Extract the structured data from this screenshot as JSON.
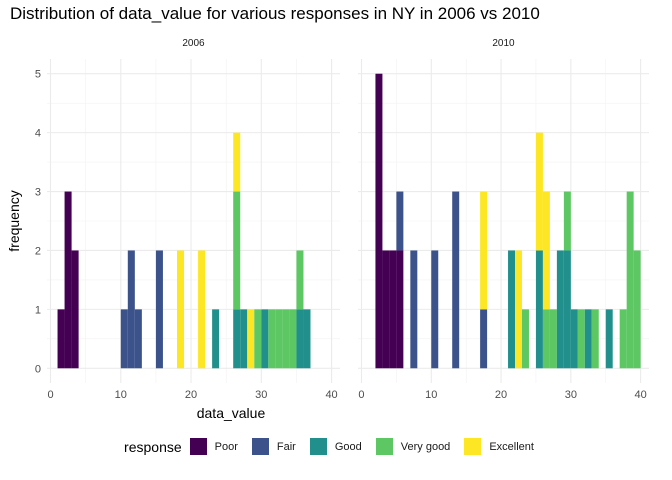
{
  "chart_data": {
    "type": "histogram",
    "title": "Distribution of data_value for various responses in NY in 2006 vs 2010",
    "xlabel": "data_value",
    "ylabel": "frequency",
    "xlim": [
      -0.5,
      41.2
    ],
    "ylim": [
      -0.25,
      5.25
    ],
    "bin_width": 1,
    "x_ticks": [
      0,
      10,
      20,
      30,
      40
    ],
    "y_ticks": [
      0,
      1,
      2,
      3,
      4,
      5
    ],
    "grid": true,
    "legend": {
      "title": "response",
      "position": "bottom",
      "entries": [
        "Poor",
        "Fair",
        "Good",
        "Very good",
        "Excellent"
      ]
    },
    "colors": {
      "Poor": "#440154",
      "Fair": "#3B528B",
      "Good": "#21908C",
      "Very good": "#5DC863",
      "Excellent": "#FDE725"
    },
    "stack_order": [
      "Poor",
      "Fair",
      "Good",
      "Very good",
      "Excellent"
    ],
    "panels": [
      {
        "label": "2006",
        "bars": [
          {
            "x": 1.5,
            "counts": {
              "Poor": 1
            }
          },
          {
            "x": 2.5,
            "counts": {
              "Poor": 3
            }
          },
          {
            "x": 3.5,
            "counts": {
              "Poor": 2
            }
          },
          {
            "x": 10.5,
            "counts": {
              "Fair": 1
            }
          },
          {
            "x": 11.5,
            "counts": {
              "Fair": 2
            }
          },
          {
            "x": 12.5,
            "counts": {
              "Fair": 1
            }
          },
          {
            "x": 15.5,
            "counts": {
              "Fair": 2
            }
          },
          {
            "x": 18.5,
            "counts": {
              "Excellent": 2
            }
          },
          {
            "x": 21.5,
            "counts": {
              "Excellent": 2
            }
          },
          {
            "x": 23.5,
            "counts": {
              "Good": 1
            }
          },
          {
            "x": 26.5,
            "counts": {
              "Good": 1,
              "Very good": 2,
              "Excellent": 1
            }
          },
          {
            "x": 27.5,
            "counts": {
              "Good": 1
            }
          },
          {
            "x": 28.5,
            "counts": {
              "Excellent": 1
            }
          },
          {
            "x": 29.5,
            "counts": {
              "Very good": 1
            }
          },
          {
            "x": 30.5,
            "counts": {
              "Good": 1
            }
          },
          {
            "x": 31.5,
            "counts": {
              "Very good": 1
            }
          },
          {
            "x": 32.5,
            "counts": {
              "Very good": 1
            }
          },
          {
            "x": 33.5,
            "counts": {
              "Very good": 1
            }
          },
          {
            "x": 34.5,
            "counts": {
              "Very good": 1
            }
          },
          {
            "x": 35.5,
            "counts": {
              "Good": 1,
              "Very good": 1
            }
          },
          {
            "x": 36.5,
            "counts": {
              "Good": 1
            }
          }
        ]
      },
      {
        "label": "2010",
        "bars": [
          {
            "x": 2.5,
            "counts": {
              "Poor": 5
            }
          },
          {
            "x": 3.5,
            "counts": {
              "Poor": 2
            }
          },
          {
            "x": 4.5,
            "counts": {
              "Poor": 2
            }
          },
          {
            "x": 5.5,
            "counts": {
              "Fair": 1,
              "Poor": 2
            }
          },
          {
            "x": 7.5,
            "counts": {
              "Fair": 2
            }
          },
          {
            "x": 10.5,
            "counts": {
              "Fair": 2
            }
          },
          {
            "x": 13.5,
            "counts": {
              "Fair": 3
            }
          },
          {
            "x": 17.5,
            "counts": {
              "Fair": 1,
              "Excellent": 2
            }
          },
          {
            "x": 21.5,
            "counts": {
              "Good": 2
            }
          },
          {
            "x": 22.5,
            "counts": {
              "Excellent": 2
            }
          },
          {
            "x": 23.5,
            "counts": {
              "Very good": 1
            }
          },
          {
            "x": 25.5,
            "counts": {
              "Good": 2,
              "Excellent": 2
            }
          },
          {
            "x": 26.5,
            "counts": {
              "Very good": 1,
              "Excellent": 2
            }
          },
          {
            "x": 27.5,
            "counts": {
              "Very good": 1
            }
          },
          {
            "x": 28.5,
            "counts": {
              "Good": 2
            }
          },
          {
            "x": 29.5,
            "counts": {
              "Good": 2,
              "Very good": 1
            }
          },
          {
            "x": 30.5,
            "counts": {
              "Good": 1
            }
          },
          {
            "x": 31.5,
            "counts": {
              "Very good": 1
            }
          },
          {
            "x": 32.5,
            "counts": {
              "Good": 1
            }
          },
          {
            "x": 33.5,
            "counts": {
              "Very good": 1
            }
          },
          {
            "x": 35.5,
            "counts": {
              "Good": 1
            }
          },
          {
            "x": 37.5,
            "counts": {
              "Very good": 1
            }
          },
          {
            "x": 38.5,
            "counts": {
              "Very good": 3
            }
          },
          {
            "x": 39.5,
            "counts": {
              "Very good": 2
            }
          }
        ]
      }
    ]
  }
}
